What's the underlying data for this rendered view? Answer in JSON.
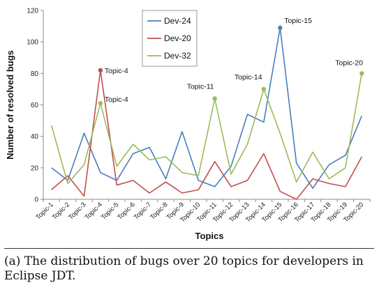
{
  "chart_data": {
    "type": "line",
    "xlabel": "Topics",
    "ylabel": "Number of resolved bugs",
    "ylim": [
      0,
      120
    ],
    "yticks": [
      0,
      20,
      40,
      60,
      80,
      100,
      120
    ],
    "grid": false,
    "legend_position": "top-center",
    "categories": [
      "Topic-1",
      "Topic-2",
      "Topic-3",
      "Topic-4",
      "Topic-5",
      "Topic-6",
      "Topic-7",
      "Topic-8",
      "Topic-9",
      "Topic-10",
      "Topic-11",
      "Topic-12",
      "Topic-13",
      "Topic-14",
      "Topic-15",
      "Topic-16",
      "Topic-17",
      "Topic-18",
      "Topic-19",
      "Topic-20"
    ],
    "series": [
      {
        "name": "Dev-24",
        "color": "#4a7ebb",
        "values": [
          20,
          12,
          42,
          17,
          12,
          29,
          33,
          13,
          43,
          12,
          8,
          21,
          54,
          49,
          109,
          23,
          7,
          22,
          28,
          53
        ]
      },
      {
        "name": "Dev-20",
        "color": "#c0504d",
        "values": [
          6,
          15,
          2,
          82,
          9,
          12,
          4,
          11,
          4,
          6,
          24,
          8,
          12,
          29,
          5,
          0,
          13,
          10,
          8,
          27
        ]
      },
      {
        "name": "Dev-32",
        "color": "#9bbb59",
        "values": [
          47,
          10,
          22,
          61,
          21,
          35,
          25,
          27,
          17,
          15,
          64,
          16,
          35,
          70,
          42,
          11,
          30,
          13,
          20,
          80
        ]
      }
    ],
    "annotations": [
      {
        "text": "Topic-4",
        "series": "Dev-20",
        "category": "Topic-4",
        "value": 82
      },
      {
        "text": "Topic-4",
        "series": "Dev-32",
        "category": "Topic-4",
        "value": 61
      },
      {
        "text": "Topic-11",
        "series": "Dev-32",
        "category": "Topic-11",
        "value": 64
      },
      {
        "text": "Topic-14",
        "series": "Dev-32",
        "category": "Topic-14",
        "value": 70
      },
      {
        "text": "Topic-15",
        "series": "Dev-24",
        "category": "Topic-15",
        "value": 109
      },
      {
        "text": "Topic-20",
        "series": "Dev-32",
        "category": "Topic-20",
        "value": 80
      }
    ]
  },
  "caption": "(a) The distribution of bugs over 20 topics for developers in Eclipse JDT."
}
